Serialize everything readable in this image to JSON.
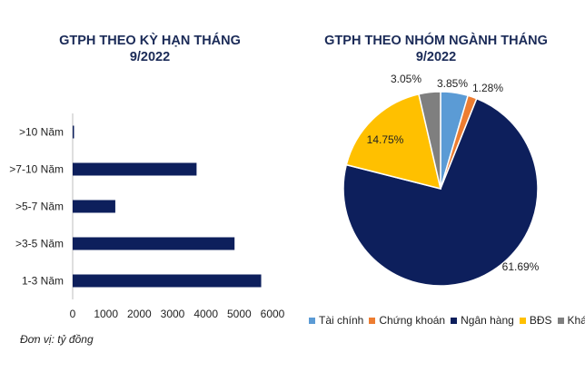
{
  "footnote": "Đơn vị: tỷ đồng",
  "chart_data": [
    {
      "type": "bar",
      "orientation": "horizontal",
      "title_line1": "GTPH THEO KỲ HẠN THÁNG",
      "title_line2": "9/2022",
      "categories": [
        ">10 Năm",
        ">7-10 Năm",
        ">5-7 Năm",
        ">3-5 Năm",
        "1-3 Năm"
      ],
      "values": [
        40,
        3720,
        1280,
        4860,
        5660
      ],
      "x_ticks": [
        "0",
        "1000",
        "2000",
        "3000",
        "4000",
        "5000",
        "6000"
      ],
      "xlim": [
        0,
        6000
      ],
      "grid": false,
      "color": "#0d1f5c"
    },
    {
      "type": "pie",
      "title_line1": "GTPH THEO NHÓM NGÀNH THÁNG",
      "title_line2": "9/2022",
      "legend_position": "bottom",
      "slices": [
        {
          "name": "Tài chính",
          "value": 3.85,
          "label": "3.85%",
          "color": "#5b9bd5"
        },
        {
          "name": "Chứng khoán",
          "value": 1.28,
          "label": "1.28%",
          "color": "#ed7d31"
        },
        {
          "name": "Ngân hàng",
          "value": 61.69,
          "label": "61.69%",
          "color": "#0d1f5c"
        },
        {
          "name": "BĐS",
          "value": 14.75,
          "label": "14.75%",
          "color": "#ffc000"
        },
        {
          "name": "Khác",
          "value": 3.05,
          "label": "3.05%",
          "color": "#7f7f7f"
        }
      ]
    }
  ]
}
